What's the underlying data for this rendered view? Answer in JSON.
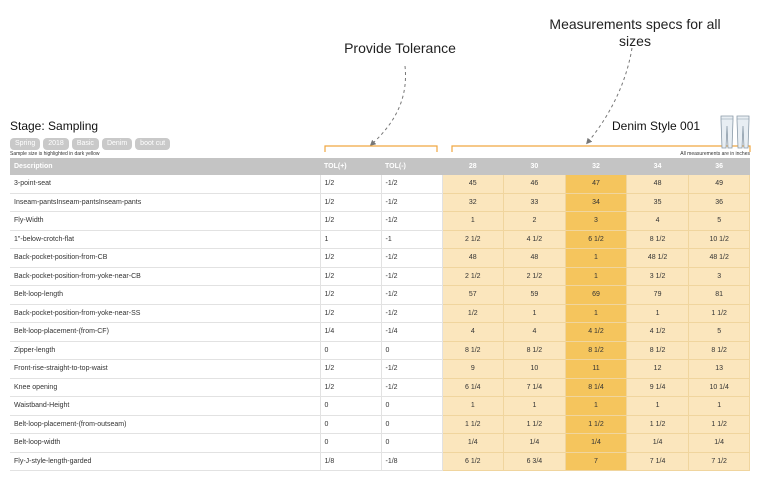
{
  "annotations": {
    "tolerance": "Provide Tolerance",
    "measurements": "Measurements specs for all sizes"
  },
  "header": {
    "stage": "Stage: Sampling",
    "tags": [
      "Spring",
      "2018",
      "Basic",
      "Denim",
      "boot cut"
    ],
    "sample_note": "Sample size is highlighted in dark yellow",
    "style_title": "Denim Style 001",
    "units_note": "All measurements are in inches"
  },
  "table": {
    "columns": {
      "description": "Description",
      "tol_plus": "TOL(+)",
      "tol_minus": "TOL(-)",
      "sizes": [
        "28",
        "30",
        "32",
        "34",
        "36"
      ]
    },
    "highlight_size_index": 2,
    "rows": [
      {
        "description": "3-point-seat",
        "tol_plus": "1/2",
        "tol_minus": "-1/2",
        "values": [
          "45",
          "46",
          "47",
          "48",
          "49"
        ]
      },
      {
        "description": "Inseam-pantsInseam-pantsInseam-pants",
        "tol_plus": "1/2",
        "tol_minus": "-1/2",
        "values": [
          "32",
          "33",
          "34",
          "35",
          "36"
        ]
      },
      {
        "description": "Fly-Width",
        "tol_plus": "1/2",
        "tol_minus": "-1/2",
        "values": [
          "1",
          "2",
          "3",
          "4",
          "5"
        ]
      },
      {
        "description": "1\"-below-crotch-flat",
        "tol_plus": "1",
        "tol_minus": "-1",
        "values": [
          "2 1/2",
          "4 1/2",
          "6 1/2",
          "8 1/2",
          "10 1/2"
        ]
      },
      {
        "description": "Back-pocket-position-from-CB",
        "tol_plus": "1/2",
        "tol_minus": "-1/2",
        "values": [
          "48",
          "48",
          "1",
          "48 1/2",
          "48 1/2"
        ]
      },
      {
        "description": "Back-pocket-position-from-yoke-near-CB",
        "tol_plus": "1/2",
        "tol_minus": "-1/2",
        "values": [
          "2 1/2",
          "2 1/2",
          "1",
          "3 1/2",
          "3"
        ]
      },
      {
        "description": "Belt-loop-length",
        "tol_plus": "1/2",
        "tol_minus": "-1/2",
        "values": [
          "57",
          "59",
          "69",
          "79",
          "81"
        ]
      },
      {
        "description": "Back-pocket-position-from-yoke-near-SS",
        "tol_plus": "1/2",
        "tol_minus": "-1/2",
        "values": [
          "1/2",
          "1",
          "1",
          "1",
          "1 1/2"
        ]
      },
      {
        "description": "Belt-loop-placement-(from-CF)",
        "tol_plus": "1/4",
        "tol_minus": "-1/4",
        "values": [
          "4",
          "4",
          "4 1/2",
          "4 1/2",
          "5"
        ]
      },
      {
        "description": "Zipper-length",
        "tol_plus": "0",
        "tol_minus": "0",
        "values": [
          "8 1/2",
          "8 1/2",
          "8 1/2",
          "8 1/2",
          "8 1/2"
        ]
      },
      {
        "description": "Front-rise-straight-to-top-waist",
        "tol_plus": "1/2",
        "tol_minus": "-1/2",
        "values": [
          "9",
          "10",
          "11",
          "12",
          "13"
        ]
      },
      {
        "description": "Knee opening",
        "tol_plus": "1/2",
        "tol_minus": "-1/2",
        "values": [
          "6 1/4",
          "7 1/4",
          "8 1/4",
          "9 1/4",
          "10 1/4"
        ]
      },
      {
        "description": "Waistband-Height",
        "tol_plus": "0",
        "tol_minus": "0",
        "values": [
          "1",
          "1",
          "1",
          "1",
          "1"
        ]
      },
      {
        "description": "Belt-loop-placement-(from-outseam)",
        "tol_plus": "0",
        "tol_minus": "0",
        "values": [
          "1 1/2",
          "1 1/2",
          "1 1/2",
          "1 1/2",
          "1 1/2"
        ]
      },
      {
        "description": "Belt-loop-width",
        "tol_plus": "0",
        "tol_minus": "0",
        "values": [
          "1/4",
          "1/4",
          "1/4",
          "1/4",
          "1/4"
        ]
      },
      {
        "description": "Fly-J-style-length-garded",
        "tol_plus": "1/8",
        "tol_minus": "-1/8",
        "values": [
          "6 1/2",
          "6 3/4",
          "7",
          "7 1/4",
          "7 1/2"
        ]
      }
    ]
  },
  "icons": {
    "product": "jeans-icon",
    "arrows": "dashed-arrow-icon"
  },
  "colors": {
    "size_cell": "#fbe6bd",
    "sample_size_cell": "#f5c55d",
    "header": "#c4c4c4",
    "bracket": "#f0a641"
  }
}
